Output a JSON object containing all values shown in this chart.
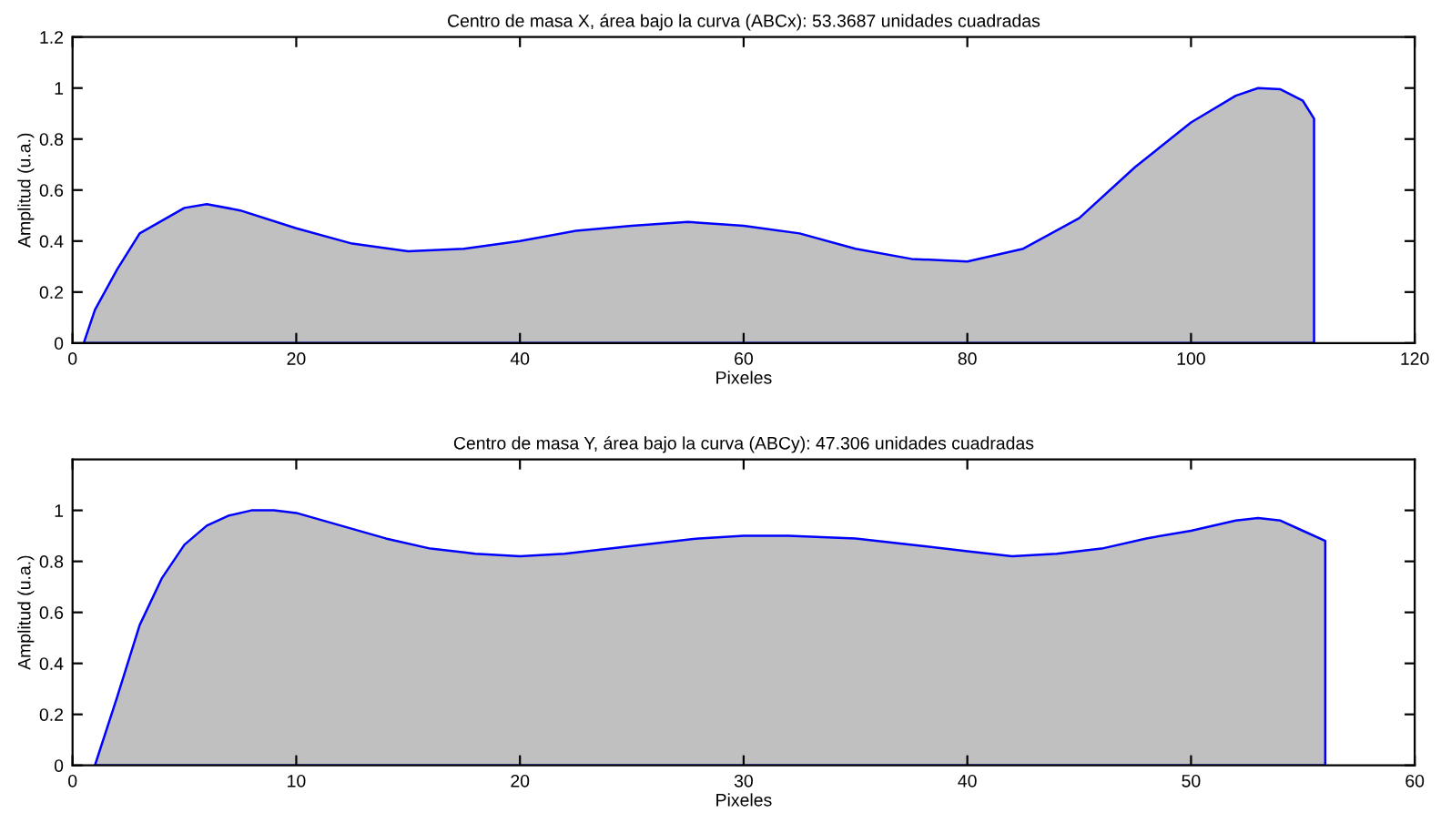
{
  "chart_data": [
    {
      "type": "area",
      "title": "Centro de masa X, área bajo la curva (ABCx): 53.3687 unidades cuadradas",
      "xlabel": "Pixeles",
      "ylabel": "Amplitud (u.a.)",
      "xlim": [
        0,
        120
      ],
      "xticks": [
        0,
        20,
        40,
        60,
        80,
        100,
        120
      ],
      "ylim": [
        0,
        1.2
      ],
      "yticks": [
        0,
        0.2,
        0.4,
        0.6,
        0.8,
        1,
        1.2
      ],
      "grid": false,
      "legend": false,
      "series": [
        {
          "color": "#c0c0c0",
          "x": [
            1,
            2,
            4,
            6,
            8,
            10,
            12,
            15,
            20,
            25,
            30,
            35,
            40,
            45,
            50,
            55,
            60,
            65,
            70,
            75,
            80,
            85,
            90,
            95,
            100,
            104,
            106,
            108,
            110,
            111
          ],
          "values": [
            0,
            0.13,
            0.29,
            0.43,
            0.48,
            0.53,
            0.545,
            0.52,
            0.45,
            0.39,
            0.36,
            0.37,
            0.4,
            0.44,
            0.46,
            0.475,
            0.46,
            0.43,
            0.37,
            0.33,
            0.32,
            0.37,
            0.49,
            0.69,
            0.865,
            0.97,
            1.0,
            0.995,
            0.95,
            0.88
          ]
        }
      ]
    },
    {
      "type": "area",
      "title": "Centro de masa Y, área bajo la curva (ABCy): 47.306 unidades cuadradas",
      "xlabel": "Pixeles",
      "ylabel": "Amplitud (u.a.)",
      "xlim": [
        0,
        60
      ],
      "xticks": [
        0,
        10,
        20,
        30,
        40,
        50,
        60
      ],
      "ylim": [
        0,
        1.2
      ],
      "yticks": [
        0,
        0.2,
        0.4,
        0.6,
        0.8,
        1
      ],
      "grid": false,
      "legend": false,
      "series": [
        {
          "color": "#c0c0c0",
          "x": [
            1,
            2,
            3,
            4,
            5,
            6,
            7,
            8,
            9,
            10,
            12,
            14,
            16,
            18,
            20,
            22,
            25,
            28,
            30,
            32,
            35,
            38,
            40,
            42,
            44,
            46,
            48,
            50,
            52,
            53,
            54,
            55,
            56
          ],
          "values": [
            0,
            0.27,
            0.55,
            0.735,
            0.865,
            0.94,
            0.98,
            1.0,
            1.0,
            0.99,
            0.94,
            0.89,
            0.85,
            0.83,
            0.82,
            0.83,
            0.86,
            0.89,
            0.9,
            0.9,
            0.89,
            0.86,
            0.84,
            0.82,
            0.83,
            0.85,
            0.89,
            0.92,
            0.96,
            0.97,
            0.96,
            0.92,
            0.88
          ]
        }
      ]
    }
  ]
}
